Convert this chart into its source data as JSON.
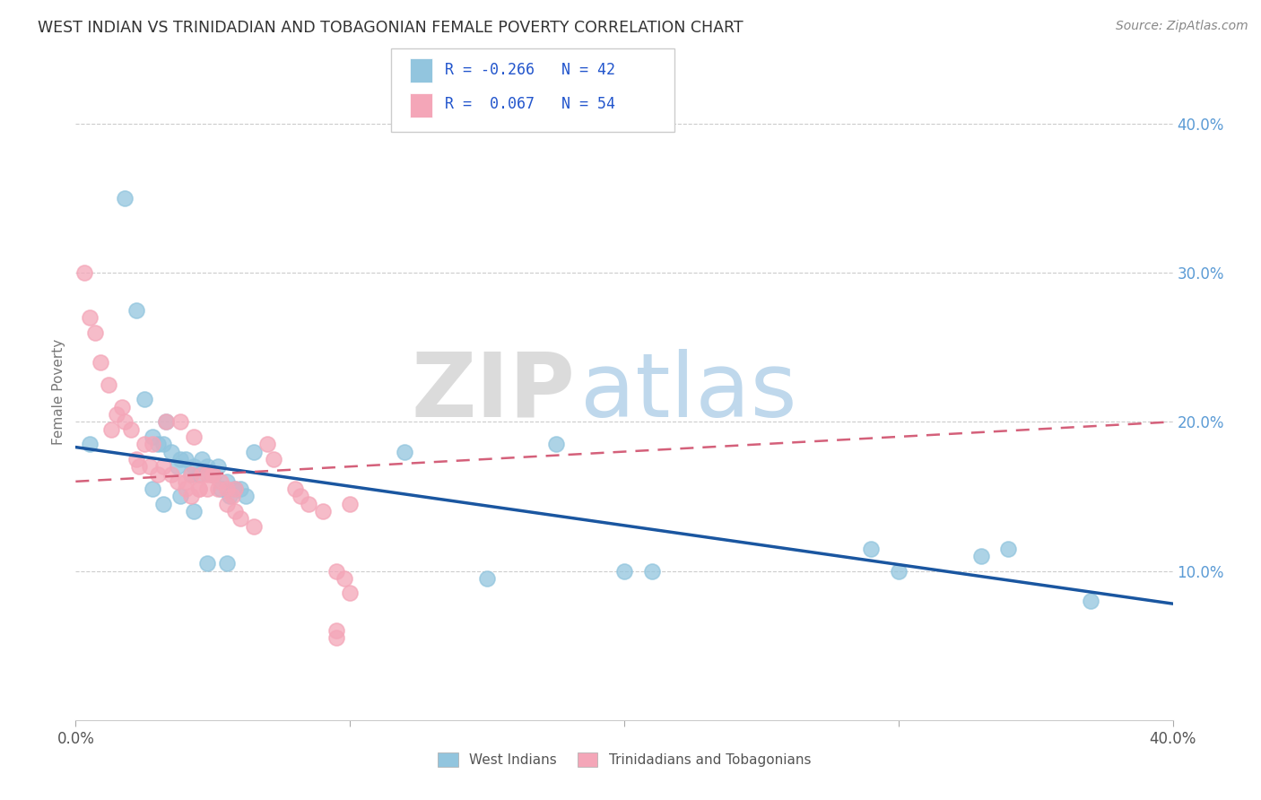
{
  "title": "WEST INDIAN VS TRINIDADIAN AND TOBAGONIAN FEMALE POVERTY CORRELATION CHART",
  "source": "Source: ZipAtlas.com",
  "ylabel": "Female Poverty",
  "legend_1_label": "West Indians",
  "legend_2_label": "Trinidadians and Tobagonians",
  "r1": "-0.266",
  "n1": "42",
  "r2": "0.067",
  "n2": "54",
  "blue_color": "#92c5de",
  "pink_color": "#f4a6b8",
  "line_blue": "#1a56a0",
  "line_pink": "#d4607a",
  "watermark_zip": "ZIP",
  "watermark_atlas": "atlas",
  "blue_points_x": [
    0.005,
    0.018,
    0.022,
    0.025,
    0.028,
    0.03,
    0.032,
    0.033,
    0.035,
    0.037,
    0.038,
    0.04,
    0.042,
    0.043,
    0.045,
    0.046,
    0.048,
    0.05,
    0.052,
    0.053,
    0.055,
    0.056,
    0.058,
    0.06,
    0.062,
    0.028,
    0.032,
    0.038,
    0.043,
    0.048,
    0.055,
    0.065,
    0.12,
    0.15,
    0.175,
    0.2,
    0.21,
    0.29,
    0.3,
    0.33,
    0.34,
    0.37
  ],
  "blue_points_y": [
    0.185,
    0.35,
    0.275,
    0.215,
    0.19,
    0.185,
    0.185,
    0.2,
    0.18,
    0.17,
    0.175,
    0.175,
    0.165,
    0.17,
    0.165,
    0.175,
    0.17,
    0.165,
    0.17,
    0.155,
    0.16,
    0.15,
    0.155,
    0.155,
    0.15,
    0.155,
    0.145,
    0.15,
    0.14,
    0.105,
    0.105,
    0.18,
    0.18,
    0.095,
    0.185,
    0.1,
    0.1,
    0.115,
    0.1,
    0.11,
    0.115,
    0.08
  ],
  "pink_points_x": [
    0.003,
    0.005,
    0.007,
    0.009,
    0.012,
    0.013,
    0.015,
    0.017,
    0.018,
    0.02,
    0.022,
    0.023,
    0.025,
    0.027,
    0.028,
    0.03,
    0.032,
    0.033,
    0.035,
    0.037,
    0.038,
    0.04,
    0.042,
    0.043,
    0.045,
    0.046,
    0.048,
    0.05,
    0.052,
    0.053,
    0.055,
    0.057,
    0.058,
    0.04,
    0.042,
    0.045,
    0.048,
    0.05,
    0.055,
    0.058,
    0.06,
    0.065,
    0.07,
    0.072,
    0.08,
    0.082,
    0.085,
    0.09,
    0.095,
    0.098,
    0.1,
    0.095,
    0.1,
    0.095
  ],
  "pink_points_y": [
    0.3,
    0.27,
    0.26,
    0.24,
    0.225,
    0.195,
    0.205,
    0.21,
    0.2,
    0.195,
    0.175,
    0.17,
    0.185,
    0.17,
    0.185,
    0.165,
    0.17,
    0.2,
    0.165,
    0.16,
    0.2,
    0.16,
    0.165,
    0.19,
    0.155,
    0.165,
    0.165,
    0.165,
    0.155,
    0.16,
    0.155,
    0.15,
    0.155,
    0.155,
    0.15,
    0.155,
    0.155,
    0.165,
    0.145,
    0.14,
    0.135,
    0.13,
    0.185,
    0.175,
    0.155,
    0.15,
    0.145,
    0.14,
    0.1,
    0.095,
    0.085,
    0.055,
    0.145,
    0.06
  ],
  "xlim": [
    0.0,
    0.4
  ],
  "ylim": [
    0.0,
    0.44
  ],
  "yticks": [
    0.1,
    0.2,
    0.3,
    0.4
  ],
  "ytick_labels": [
    "10.0%",
    "20.0%",
    "30.0%",
    "40.0%"
  ],
  "xticks": [
    0.0,
    0.1,
    0.2,
    0.3,
    0.4
  ],
  "bg_color": "#ffffff",
  "grid_color": "#cccccc",
  "blue_line_x0": 0.0,
  "blue_line_x1": 0.4,
  "blue_line_y0": 0.183,
  "blue_line_y1": 0.078,
  "pink_line_x0": 0.0,
  "pink_line_x1": 0.4,
  "pink_line_y0": 0.16,
  "pink_line_y1": 0.2
}
